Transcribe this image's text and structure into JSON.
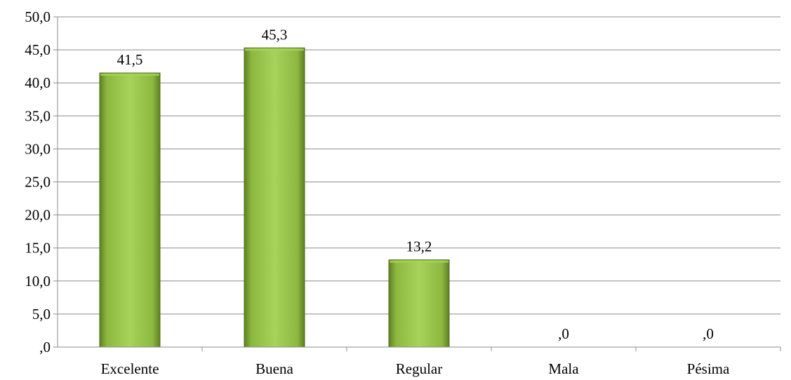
{
  "chart_data": {
    "type": "bar",
    "categories": [
      "Excelente",
      "Buena",
      "Regular",
      "Mala",
      "Pésima"
    ],
    "values": [
      41.5,
      45.3,
      13.2,
      0,
      0
    ],
    "value_labels": [
      "41,5",
      "45,3",
      "13,2",
      ",0",
      ",0"
    ],
    "ylim": [
      0,
      50
    ],
    "yticks": [
      0,
      5,
      10,
      15,
      20,
      25,
      30,
      35,
      40,
      45,
      50
    ],
    "ytick_labels": [
      ",0",
      "5,0",
      "10,0",
      "15,0",
      "20,0",
      "25,0",
      "30,0",
      "35,0",
      "40,0",
      "45,0",
      "50,0"
    ],
    "grid": true,
    "legend": "none",
    "title": "",
    "xlabel": "",
    "ylabel": "",
    "colors": {
      "bar_light": "#a8d35a",
      "bar_mid": "#8db83f",
      "bar_dark": "#5f7f24",
      "bar_edge": "#4f6b1d"
    }
  }
}
